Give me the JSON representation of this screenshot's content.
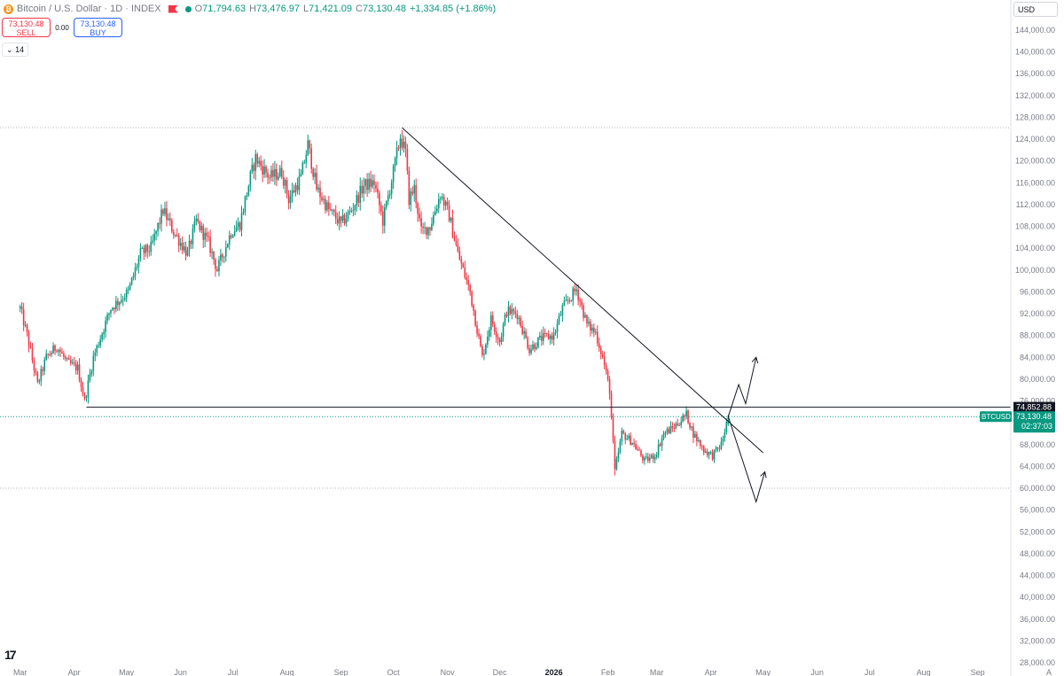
{
  "header": {
    "symbol_title": "Bitcoin / U.S. Dollar · 1D · INDEX",
    "open_label": "O",
    "open": "71,794.63",
    "high_label": "H",
    "high": "73,476.97",
    "low_label": "L",
    "low": "71,421.09",
    "close_label": "C",
    "close": "73,130.48",
    "change": "+1,334.85 (+1.86%)"
  },
  "trade": {
    "sell_price": "73,130.48",
    "sell_label": "SELL",
    "spread": "0.00",
    "buy_price": "73,130.48",
    "buy_label": "BUY"
  },
  "period_value": "14",
  "currency": "USD",
  "colors": {
    "up": "#089981",
    "down": "#f23645",
    "accent": "#2962ff"
  },
  "chart_data": {
    "type": "candlestick",
    "title": "",
    "xlabel": "",
    "ylabel": "",
    "ylim": [
      28000,
      146000
    ],
    "y_ticks": [
      "144,000.00",
      "140,000.00",
      "136,000.00",
      "132,000.00",
      "128,000.00",
      "124,000.00",
      "120,000.00",
      "116,000.00",
      "112,000.00",
      "108,000.00",
      "104,000.00",
      "100,000.00",
      "96,000.00",
      "92,000.00",
      "88,000.00",
      "84,000.00",
      "80,000.00",
      "76,000.00",
      "72,000.00",
      "68,000.00",
      "64,000.00",
      "60,000.00",
      "56,000.00",
      "52,000.00",
      "48,000.00",
      "44,000.00",
      "40,000.00",
      "36,000.00",
      "32,000.00",
      "28,000.00"
    ],
    "x_ticks": [
      "Mar",
      "Apr",
      "May",
      "Jun",
      "Jul",
      "Aug",
      "Sep",
      "Oct",
      "Nov",
      "Dec",
      "2026",
      "Feb",
      "Mar",
      "Apr",
      "May",
      "Jun",
      "Jul",
      "Aug",
      "Sep"
    ],
    "price_path": [
      [
        "2025-03-01",
        93000
      ],
      [
        "2025-03-05",
        88000
      ],
      [
        "2025-03-11",
        79000
      ],
      [
        "2025-03-16",
        84000
      ],
      [
        "2025-03-22",
        86000
      ],
      [
        "2025-03-28",
        83000
      ],
      [
        "2025-04-03",
        82000
      ],
      [
        "2025-04-07",
        76000
      ],
      [
        "2025-04-12",
        84000
      ],
      [
        "2025-04-22",
        93000
      ],
      [
        "2025-05-02",
        96000
      ],
      [
        "2025-05-09",
        103000
      ],
      [
        "2025-05-15",
        104000
      ],
      [
        "2025-05-22",
        111000
      ],
      [
        "2025-05-28",
        107000
      ],
      [
        "2025-06-05",
        103000
      ],
      [
        "2025-06-10",
        109000
      ],
      [
        "2025-06-17",
        105000
      ],
      [
        "2025-06-22",
        100000
      ],
      [
        "2025-06-30",
        107000
      ],
      [
        "2025-07-05",
        108500
      ],
      [
        "2025-07-11",
        117000
      ],
      [
        "2025-07-14",
        120500
      ],
      [
        "2025-07-22",
        117000
      ],
      [
        "2025-07-29",
        118000
      ],
      [
        "2025-08-02",
        113000
      ],
      [
        "2025-08-09",
        117000
      ],
      [
        "2025-08-13",
        123000
      ],
      [
        "2025-08-18",
        115000
      ],
      [
        "2025-08-25",
        111000
      ],
      [
        "2025-09-01",
        108500
      ],
      [
        "2025-09-07",
        111000
      ],
      [
        "2025-09-14",
        115500
      ],
      [
        "2025-09-20",
        116000
      ],
      [
        "2025-09-25",
        109000
      ],
      [
        "2025-10-01",
        118000
      ],
      [
        "2025-10-05",
        124500
      ],
      [
        "2025-10-08",
        121500
      ],
      [
        "2025-10-10",
        113000
      ],
      [
        "2025-10-13",
        115000
      ],
      [
        "2025-10-17",
        107000
      ],
      [
        "2025-10-22",
        108000
      ],
      [
        "2025-10-28",
        114000
      ],
      [
        "2025-11-02",
        110000
      ],
      [
        "2025-11-07",
        103000
      ],
      [
        "2025-11-14",
        96000
      ],
      [
        "2025-11-21",
        84000
      ],
      [
        "2025-11-26",
        91000
      ],
      [
        "2025-12-01",
        87000
      ],
      [
        "2025-12-05",
        92500
      ],
      [
        "2025-12-11",
        92000
      ],
      [
        "2025-12-18",
        85500
      ],
      [
        "2025-12-25",
        87500
      ],
      [
        "2026-01-01",
        88000
      ],
      [
        "2026-01-06",
        93000
      ],
      [
        "2026-01-14",
        96500
      ],
      [
        "2026-01-20",
        90000
      ],
      [
        "2026-01-25",
        88500
      ],
      [
        "2026-01-29",
        84000
      ],
      [
        "2026-02-02",
        78000
      ],
      [
        "2026-02-05",
        63000
      ],
      [
        "2026-02-09",
        70000
      ],
      [
        "2026-02-15",
        68500
      ],
      [
        "2026-02-22",
        65000
      ],
      [
        "2026-02-28",
        66000
      ],
      [
        "2026-03-05",
        70000
      ],
      [
        "2026-03-10",
        71000
      ],
      [
        "2026-03-15",
        72500
      ],
      [
        "2026-03-18",
        73500
      ],
      [
        "2026-03-22",
        70000
      ],
      [
        "2026-03-28",
        67000
      ],
      [
        "2026-04-02",
        66000
      ],
      [
        "2026-04-07",
        68000
      ],
      [
        "2026-04-10",
        71794.63
      ],
      [
        "2026-04-11",
        73130.48
      ]
    ],
    "horizontal_levels": [
      {
        "price": 126100,
        "style": "dotted"
      },
      {
        "price": 74852.88,
        "style": "solid",
        "label": "74,852.88"
      },
      {
        "price": 73130.48,
        "style": "dotted"
      },
      {
        "price": 60000,
        "style": "dotted"
      }
    ],
    "trendline": {
      "from": [
        "2025-10-06",
        126100
      ],
      "to": [
        "2026-05-01",
        66500
      ]
    },
    "support_line": {
      "from": [
        "2025-04-08",
        74852.88
      ],
      "to": [
        "2026-04-12",
        74852.88
      ]
    },
    "projection_up": [
      [
        "2026-04-11",
        73130.48
      ],
      [
        "2026-04-17",
        79000
      ],
      [
        "2026-04-21",
        75500
      ],
      [
        "2026-04-27",
        84000
      ]
    ],
    "projection_down": [
      [
        "2026-04-11",
        73130.48
      ],
      [
        "2026-04-27",
        57500
      ],
      [
        "2026-05-02",
        63000
      ]
    ],
    "current_price": {
      "symbol": "BTCUSD",
      "price": "73,130.48",
      "countdown": "02:37:03"
    }
  }
}
